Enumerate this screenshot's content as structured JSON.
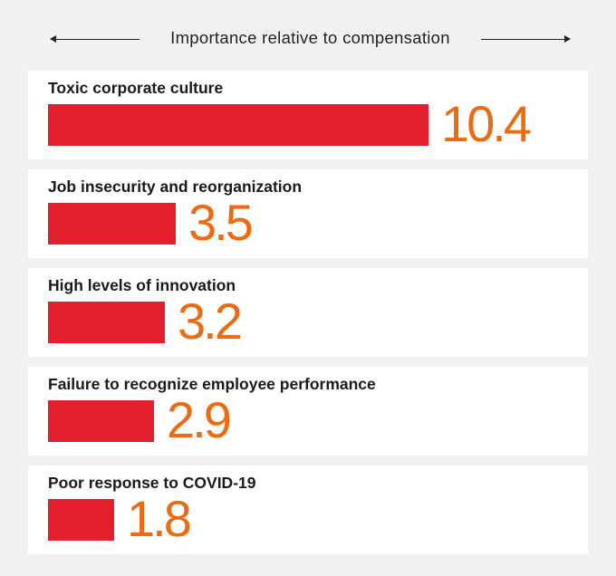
{
  "chart_data": {
    "type": "bar",
    "orientation": "horizontal",
    "title": "Importance relative to compensation",
    "categories": [
      "Toxic corporate culture",
      "Job insecurity and reorganization",
      "High levels of innovation",
      "Failure to recognize employee performance",
      "Poor response to COVID-19"
    ],
    "values": [
      "10.4",
      "3.5",
      "3.2",
      "2.9",
      "1.8"
    ],
    "xlim": [
      0,
      11.4
    ],
    "colors": {
      "bar": "#e31e2d",
      "value_label": "#ec6a10",
      "card": "#ffffff",
      "background": "#f2f1ef"
    }
  }
}
